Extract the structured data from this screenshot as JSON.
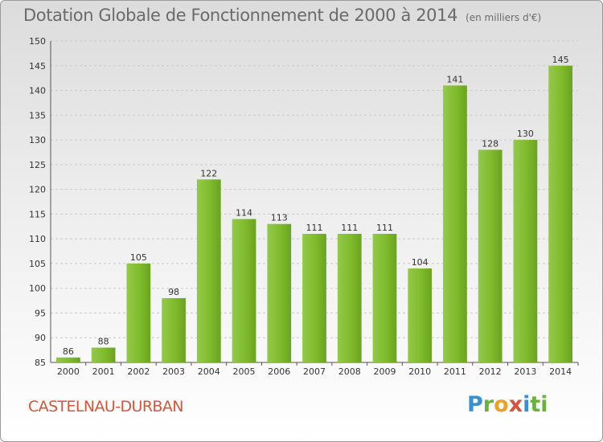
{
  "chart_data": {
    "type": "bar",
    "title": "Dotation Globale de Fonctionnement de 2000 à 2014",
    "unit_note": "(en milliers d'€)",
    "categories": [
      "2000",
      "2001",
      "2002",
      "2003",
      "2004",
      "2005",
      "2006",
      "2007",
      "2008",
      "2009",
      "2010",
      "2011",
      "2012",
      "2013",
      "2014"
    ],
    "values": [
      86,
      88,
      105,
      98,
      122,
      114,
      113,
      111,
      111,
      111,
      104,
      141,
      128,
      130,
      145
    ],
    "ylim": [
      85,
      150
    ],
    "yticks": [
      85,
      90,
      95,
      100,
      105,
      110,
      115,
      120,
      125,
      130,
      135,
      140,
      145,
      150
    ],
    "grid": true,
    "bar_color": "#7fbb2c"
  },
  "city": "CASTELNAU-DURBAN",
  "logo": [
    "P",
    "r",
    "o",
    "x",
    "i",
    "ti"
  ]
}
